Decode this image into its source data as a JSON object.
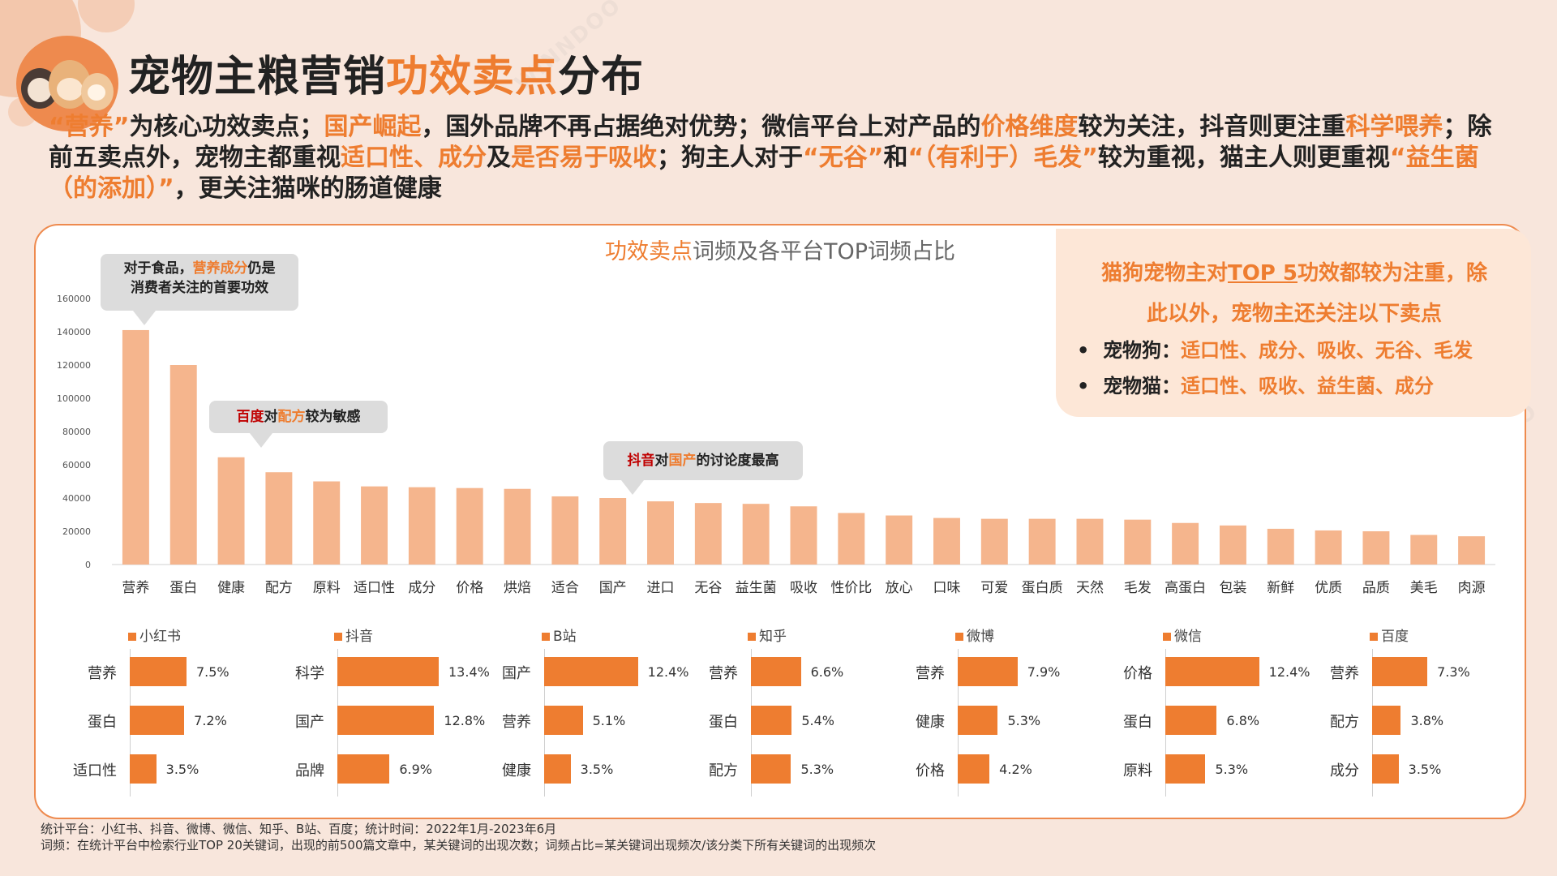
{
  "header": {
    "title_part1": "宠物主粮营销",
    "title_highlight": "功效卖点",
    "title_part2": "分布"
  },
  "summary": {
    "s1": "“营养”",
    "s2": "为核心功效卖点；",
    "s3": "国产崛起",
    "s4": "，国外品牌不再占据绝对优势；微信平台上对产品的",
    "s5": "价格维度",
    "s6": "较为关注，抖音则更注重",
    "s7": "科学喂养",
    "s8": "；除前五卖点外，宠物主都重视",
    "s9": "适口性、成分",
    "s10": "及",
    "s11": "是否易于吸收",
    "s12": "；狗主人对于",
    "s13": "“无谷”",
    "s14": "和",
    "s15": "“（有利于）毛发”",
    "s16": "较为重视，猫主人则更重视",
    "s17": "“益生菌（的添加）”",
    "s18": "，更关注猫咪的肠道健康"
  },
  "chart_title": {
    "highlight": "功效卖点",
    "rest": "词频及各平台TOP词频占比"
  },
  "callout": {
    "line1_a": "猫狗宠物主对",
    "line1_u": "TOP 5",
    "line1_b": "功效都较为注重，除",
    "line2": "此以外，宠物主还关注以下卖点",
    "dog_label": "宠物狗：",
    "dog_items": "适口性、成分、吸收、无谷、毛发",
    "cat_label": "宠物猫：",
    "cat_items": "适口性、吸收、益生菌、成分",
    "bullet": "•"
  },
  "bubbles": {
    "b1_a": "对于食品，",
    "b1_o": "营养成分",
    "b1_b": "仍是",
    "b1_c": "消费者关注的首要功效",
    "b2_r": "百度",
    "b2_a": "对",
    "b2_o": "配方",
    "b2_b": "较为敏感",
    "b3_r": "抖音",
    "b3_a": "对",
    "b3_o": "国产",
    "b3_b": "的讨论度最高"
  },
  "colors": {
    "accent": "#ee7d30",
    "bar_light": "#f5b58d",
    "highlight_red": "#c00000"
  },
  "chart_data": [
    {
      "type": "bar",
      "title": "功效卖点词频及各平台TOP词频占比",
      "categories": [
        "营养",
        "蛋白",
        "健康",
        "配方",
        "原料",
        "适口性",
        "成分",
        "价格",
        "烘焙",
        "适合",
        "国产",
        "进口",
        "无谷",
        "益生菌",
        "吸收",
        "性价比",
        "放心",
        "口味",
        "可爱",
        "蛋白质",
        "天然",
        "毛发",
        "高蛋白",
        "包装",
        "新鲜",
        "优质",
        "品质",
        "美毛",
        "肉源"
      ],
      "values": [
        141000,
        120000,
        64500,
        55500,
        50000,
        47000,
        46500,
        46000,
        45500,
        41000,
        40000,
        38000,
        37000,
        36500,
        35000,
        31000,
        29500,
        28000,
        27500,
        27500,
        27500,
        27000,
        25000,
        23500,
        21500,
        20500,
        20000,
        17800,
        17000
      ],
      "ylim": [
        0,
        160000
      ],
      "yticks": [
        0,
        20000,
        40000,
        60000,
        80000,
        100000,
        120000,
        140000,
        160000
      ],
      "grid": false
    },
    {
      "type": "bar",
      "series_name": "小红书",
      "categories": [
        "营养",
        "蛋白",
        "适口性"
      ],
      "values": [
        7.5,
        7.2,
        3.5
      ],
      "labels": [
        "7.5%",
        "7.2%",
        "3.5%"
      ]
    },
    {
      "type": "bar",
      "series_name": "抖音",
      "categories": [
        "科学",
        "国产",
        "品牌"
      ],
      "values": [
        13.4,
        12.8,
        6.9
      ],
      "labels": [
        "13.4%",
        "12.8%",
        "6.9%"
      ]
    },
    {
      "type": "bar",
      "series_name": "B站",
      "categories": [
        "国产",
        "营养",
        "健康"
      ],
      "values": [
        12.4,
        5.1,
        3.5
      ],
      "labels": [
        "12.4%",
        "5.1%",
        "3.5%"
      ]
    },
    {
      "type": "bar",
      "series_name": "知乎",
      "categories": [
        "营养",
        "蛋白",
        "配方"
      ],
      "values": [
        6.6,
        5.4,
        5.3
      ],
      "labels": [
        "6.6%",
        "5.4%",
        "5.3%"
      ]
    },
    {
      "type": "bar",
      "series_name": "微博",
      "categories": [
        "营养",
        "健康",
        "价格"
      ],
      "values": [
        7.9,
        5.3,
        4.2
      ],
      "labels": [
        "7.9%",
        "5.3%",
        "4.2%"
      ]
    },
    {
      "type": "bar",
      "series_name": "微信",
      "categories": [
        "价格",
        "蛋白",
        "原料"
      ],
      "values": [
        12.4,
        6.8,
        5.3
      ],
      "labels": [
        "12.4%",
        "6.8%",
        "5.3%"
      ]
    },
    {
      "type": "bar",
      "series_name": "百度",
      "categories": [
        "营养",
        "配方",
        "成分"
      ],
      "values": [
        7.3,
        3.8,
        3.5
      ],
      "labels": [
        "7.3%",
        "3.8%",
        "3.5%"
      ]
    }
  ],
  "footnote": {
    "line1": "统计平台：小红书、抖音、微博、微信、知乎、B站、百度；统计时间：2022年1月-2023年6月",
    "line2": "词频：在统计平台中检索行业TOP 20关键词，出现的前500篇文章中，某关键词的出现次数；词频占比=某关键词出现频次/该分类下所有关键词的出现频次"
  },
  "watermark": "WINNDOO"
}
